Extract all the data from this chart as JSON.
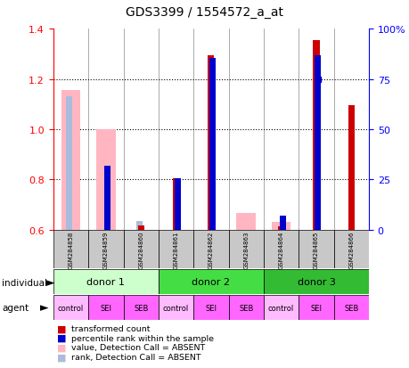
{
  "title": "GDS3399 / 1554572_a_at",
  "samples": [
    "GSM284858",
    "GSM284859",
    "GSM284860",
    "GSM284861",
    "GSM284862",
    "GSM284863",
    "GSM284864",
    "GSM284865",
    "GSM284866"
  ],
  "red_values": [
    null,
    null,
    0.616,
    0.805,
    1.295,
    null,
    0.615,
    1.355,
    1.095
  ],
  "pink_values": [
    1.155,
    1.0,
    null,
    null,
    null,
    0.665,
    0.63,
    null,
    null
  ],
  "blue_values": [
    null,
    0.855,
    null,
    0.805,
    1.285,
    null,
    0.655,
    1.295,
    null
  ],
  "lightblue_values": [
    1.13,
    null,
    0.635,
    null,
    null,
    null,
    null,
    null,
    null
  ],
  "blue_dot_values": [
    null,
    null,
    null,
    null,
    null,
    null,
    null,
    1.2,
    null
  ],
  "ylim": [
    0.6,
    1.4
  ],
  "yticks_left": [
    0.6,
    0.8,
    1.0,
    1.2,
    1.4
  ],
  "yticks_right_labels": [
    "0",
    "25",
    "50",
    "75",
    "100%"
  ],
  "right_tick_positions": [
    0.6,
    0.8,
    1.0,
    1.2,
    1.4
  ],
  "donors": [
    {
      "label": "donor 1",
      "cols": [
        0,
        1,
        2
      ],
      "color": "#CCFFCC"
    },
    {
      "label": "donor 2",
      "cols": [
        3,
        4,
        5
      ],
      "color": "#44DD44"
    },
    {
      "label": "donor 3",
      "cols": [
        6,
        7,
        8
      ],
      "color": "#33BB33"
    }
  ],
  "agents": [
    "control",
    "SEI",
    "SEB",
    "control",
    "SEI",
    "SEB",
    "control",
    "SEI",
    "SEB"
  ],
  "agent_colors": [
    "#FFBBFF",
    "#FF66FF",
    "#FF66FF",
    "#FFBBFF",
    "#FF66FF",
    "#FF66FF",
    "#FFBBFF",
    "#FF66FF",
    "#FF66FF"
  ],
  "legend_items": [
    {
      "label": "transformed count",
      "color": "#CC0000"
    },
    {
      "label": "percentile rank within the sample",
      "color": "#0000CC"
    },
    {
      "label": "value, Detection Call = ABSENT",
      "color": "#FFB6C1"
    },
    {
      "label": "rank, Detection Call = ABSENT",
      "color": "#AABBDD"
    }
  ],
  "pink_bar_width": 0.55,
  "red_bar_width": 0.18,
  "blue_bar_width": 0.18,
  "baseline": 0.6
}
